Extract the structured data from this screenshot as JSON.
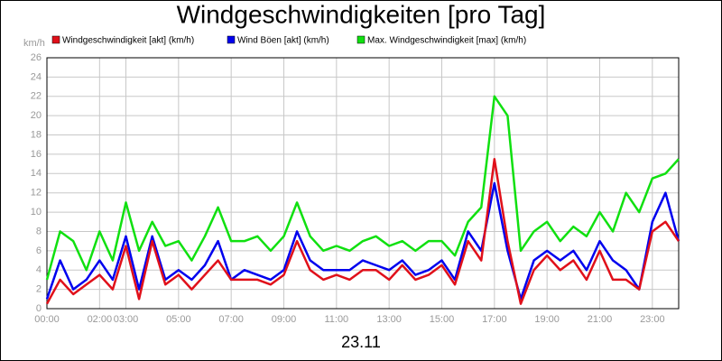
{
  "chart_data": {
    "type": "line",
    "title": "Windgeschwindigkeiten [pro Tag]",
    "y_label": "km/h",
    "footer": "23.11",
    "x": [
      0,
      0.5,
      1,
      1.5,
      2,
      2.5,
      3,
      3.5,
      4,
      4.5,
      5,
      5.5,
      6,
      6.5,
      7,
      7.5,
      8,
      8.5,
      9,
      9.5,
      10,
      10.5,
      11,
      11.5,
      12,
      12.5,
      13,
      13.5,
      14,
      14.5,
      15,
      15.5,
      16,
      16.5,
      17,
      17.5,
      18,
      18.5,
      19,
      19.5,
      20,
      20.5,
      21,
      21.5,
      22,
      22.5,
      23,
      23.5,
      24
    ],
    "series": [
      {
        "name": "Windgeschwindigkeit [akt] (km/h)",
        "color": "#e0101a",
        "values": [
          0.5,
          3,
          1.5,
          2.5,
          3.5,
          2,
          6.5,
          1,
          7,
          2.5,
          3.5,
          2,
          3.5,
          5,
          3,
          3,
          3,
          2.5,
          3.5,
          7,
          4,
          3,
          3.5,
          3,
          4,
          4,
          3,
          4.5,
          3,
          3.5,
          4.5,
          2.5,
          7,
          5,
          15.5,
          7,
          0.5,
          4,
          5.5,
          4,
          5,
          3,
          6,
          3,
          3,
          2,
          8,
          9,
          7
        ]
      },
      {
        "name": "Wind Böen [akt] (km/h)",
        "color": "#0000ee",
        "values": [
          1,
          5,
          2,
          3,
          5,
          3,
          7.5,
          2,
          7.5,
          3,
          4,
          3,
          4.5,
          7,
          3,
          4,
          3.5,
          3,
          4,
          8,
          5,
          4,
          4,
          4,
          5,
          4.5,
          4,
          5,
          3.5,
          4,
          5,
          3,
          8,
          6,
          13,
          6,
          1,
          5,
          6,
          5,
          6,
          4,
          7,
          5,
          4,
          2,
          9,
          12,
          7
        ]
      },
      {
        "name": "Max. Windgeschwindigkeit [max] (km/h)",
        "color": "#10e010",
        "values": [
          3,
          8,
          7,
          4,
          8,
          5,
          11,
          6,
          9,
          6.5,
          7,
          5,
          7.5,
          10.5,
          7,
          7,
          7.5,
          6,
          7.5,
          11,
          7.5,
          6,
          6.5,
          6,
          7,
          7.5,
          6.5,
          7,
          6,
          7,
          7,
          5.5,
          9,
          10.5,
          22,
          20,
          6,
          8,
          9,
          7,
          8.5,
          7.5,
          10,
          8,
          12,
          10,
          13.5,
          14,
          15.5
        ]
      }
    ],
    "xlim": [
      0,
      24
    ],
    "xticks": [
      {
        "value": 0,
        "label": "00:00"
      },
      {
        "value": 2,
        "label": "02:00"
      },
      {
        "value": 3,
        "label": "03:00"
      },
      {
        "value": 5,
        "label": "05:00"
      },
      {
        "value": 7,
        "label": "07:00"
      },
      {
        "value": 9,
        "label": "09:00"
      },
      {
        "value": 11,
        "label": "11:00"
      },
      {
        "value": 13,
        "label": "13:00"
      },
      {
        "value": 15,
        "label": "15:00"
      },
      {
        "value": 17,
        "label": "17:00"
      },
      {
        "value": 19,
        "label": "19:00"
      },
      {
        "value": 21,
        "label": "21:00"
      },
      {
        "value": 23,
        "label": "23:00"
      }
    ],
    "ylim": [
      0,
      26
    ],
    "yticks": [
      0,
      2,
      4,
      6,
      8,
      10,
      12,
      14,
      16,
      18,
      20,
      22,
      24,
      26
    ],
    "grid": true
  }
}
